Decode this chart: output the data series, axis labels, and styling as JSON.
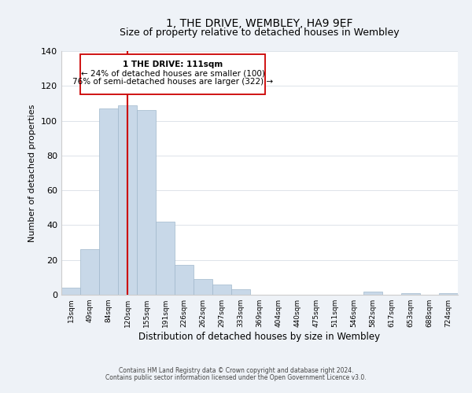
{
  "title": "1, THE DRIVE, WEMBLEY, HA9 9EF",
  "subtitle": "Size of property relative to detached houses in Wembley",
  "xlabel": "Distribution of detached houses by size in Wembley",
  "ylabel": "Number of detached properties",
  "bar_color": "#c8d8e8",
  "bar_edge_color": "#a0b8cc",
  "bin_labels": [
    "13sqm",
    "49sqm",
    "84sqm",
    "120sqm",
    "155sqm",
    "191sqm",
    "226sqm",
    "262sqm",
    "297sqm",
    "333sqm",
    "369sqm",
    "404sqm",
    "440sqm",
    "475sqm",
    "511sqm",
    "546sqm",
    "582sqm",
    "617sqm",
    "653sqm",
    "688sqm",
    "724sqm"
  ],
  "bar_values": [
    4,
    26,
    107,
    109,
    106,
    42,
    17,
    9,
    6,
    3,
    0,
    0,
    0,
    0,
    0,
    0,
    2,
    0,
    1,
    0,
    1
  ],
  "ylim": [
    0,
    140
  ],
  "yticks": [
    0,
    20,
    40,
    60,
    80,
    100,
    120,
    140
  ],
  "vline_x": 3,
  "vline_color": "#cc0000",
  "annotation_title": "1 THE DRIVE: 111sqm",
  "annotation_line1": "← 24% of detached houses are smaller (100)",
  "annotation_line2": "76% of semi-detached houses are larger (322) →",
  "footer_line1": "Contains HM Land Registry data © Crown copyright and database right 2024.",
  "footer_line2": "Contains public sector information licensed under the Open Government Licence v3.0.",
  "background_color": "#eef2f7",
  "plot_background": "#ffffff"
}
